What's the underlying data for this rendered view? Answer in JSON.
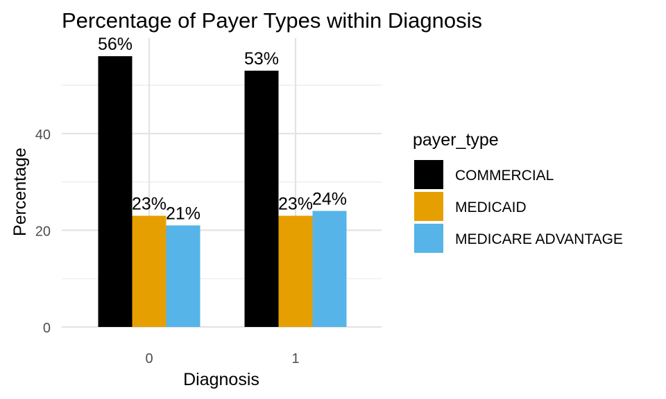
{
  "chart_data": {
    "type": "bar",
    "title": "Percentage of Payer Types within Diagnosis",
    "xlabel": "Diagnosis",
    "ylabel": "Percentage",
    "categories": [
      "0",
      "1"
    ],
    "series": [
      {
        "name": "COMMERCIAL",
        "values": [
          56,
          53
        ],
        "labels": [
          "56%",
          "53%"
        ],
        "color": "#000000"
      },
      {
        "name": "MEDICAID",
        "values": [
          23,
          23
        ],
        "labels": [
          "23%",
          "23%"
        ],
        "color": "#E69F00"
      },
      {
        "name": "MEDICARE ADVANTAGE",
        "values": [
          21,
          24
        ],
        "labels": [
          "21%",
          "24%"
        ],
        "color": "#56B4E9"
      }
    ],
    "ylim": [
      0,
      56
    ],
    "yticks": [
      0,
      20,
      40
    ],
    "yticks_labels": [
      "0",
      "20",
      "40"
    ],
    "legend_title": "payer_type",
    "legend_position": "right",
    "grid": true,
    "theme": "minimal"
  }
}
